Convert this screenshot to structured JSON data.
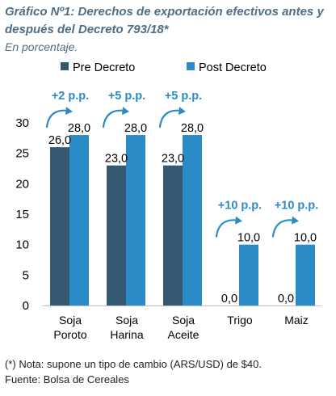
{
  "header": {
    "title": "Gráfico Nº1: Derechos de exportación efectivos antes y después del Decreto 793/18*",
    "subtitle": "En porcentaje."
  },
  "footer": {
    "note": "(*) Nota: supone un tipo de cambio (ARS/USD) de $40.",
    "source": "Fuente: Bolsa de Cereales"
  },
  "colors": {
    "pre": "#34586f",
    "post": "#2b8bc6",
    "annotation": "#2b8bc6"
  },
  "chart_data": {
    "type": "bar",
    "categories": [
      [
        "Soja",
        "Poroto"
      ],
      [
        "Soja",
        "Harina"
      ],
      [
        "Soja",
        "Aceite"
      ],
      [
        "Trigo"
      ],
      [
        "Maiz"
      ]
    ],
    "series": [
      {
        "name": "Pre Decreto",
        "values": [
          26.0,
          23.0,
          23.0,
          0.0,
          0.0
        ],
        "labels": [
          "26,0",
          "23,0",
          "23,0",
          "0,0",
          "0,0"
        ]
      },
      {
        "name": "Post Decreto",
        "values": [
          28.0,
          28.0,
          28.0,
          10.0,
          10.0
        ],
        "labels": [
          "28,0",
          "28,0",
          "28,0",
          "10,0",
          "10,0"
        ]
      }
    ],
    "annotations": [
      "+2 p.p.",
      "+5 p.p.",
      "+5 p.p.",
      "+10 p.p.",
      "+10 p.p."
    ],
    "ylim": [
      0,
      30
    ],
    "yticks": [
      0,
      5,
      10,
      15,
      20,
      25,
      30
    ],
    "legend_position": "top",
    "grid": false
  }
}
